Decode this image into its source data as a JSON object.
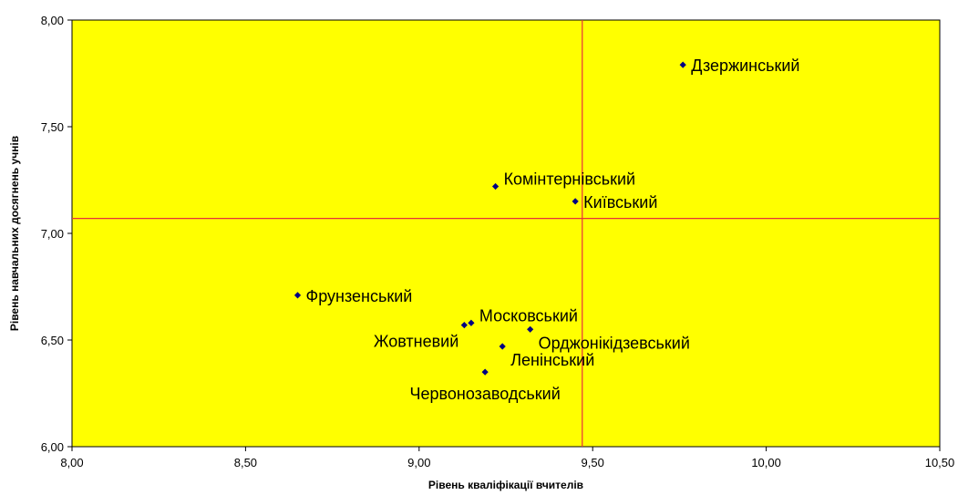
{
  "chart_data": {
    "type": "scatter",
    "title": "",
    "xlabel": "Рівень кваліфікації вчителів",
    "ylabel": "Рівень навчальних досягнень учнів",
    "xlim": [
      8.0,
      10.5
    ],
    "ylim": [
      6.0,
      8.0
    ],
    "x_ticks": [
      "8,00",
      "8,50",
      "9,00",
      "9,50",
      "10,00",
      "10,50"
    ],
    "x_tick_values": [
      8.0,
      8.5,
      9.0,
      9.5,
      10.0,
      10.5
    ],
    "y_ticks": [
      "6,00",
      "6,50",
      "7,00",
      "7,50",
      "8,00"
    ],
    "y_tick_values": [
      6.0,
      6.5,
      7.0,
      7.5,
      8.0
    ],
    "reference_lines": {
      "x": 9.47,
      "y": 7.07
    },
    "grid": false,
    "colors": {
      "plot_background": "#FFFF00",
      "marker": "#000080",
      "reference_line": "#E8303A"
    },
    "points": [
      {
        "label": "Дзержинський",
        "x": 9.76,
        "y": 7.79,
        "label_position": "right"
      },
      {
        "label": "Комінтернівський",
        "x": 9.22,
        "y": 7.22,
        "label_position": "upper-right"
      },
      {
        "label": "Київський",
        "x": 9.45,
        "y": 7.15,
        "label_position": "right"
      },
      {
        "label": "Фрунзенський",
        "x": 8.65,
        "y": 6.71,
        "label_position": "right"
      },
      {
        "label": "Московський",
        "x": 9.15,
        "y": 6.58,
        "label_position": "upper-right"
      },
      {
        "label": "Жовтневий",
        "x": 9.13,
        "y": 6.57,
        "label_position": "lower-left"
      },
      {
        "label": "Орджонікідзевський",
        "x": 9.32,
        "y": 6.55,
        "label_position": "lower-right"
      },
      {
        "label": "Ленінський",
        "x": 9.24,
        "y": 6.47,
        "label_position": "lower-right"
      },
      {
        "label": "Червонозаводський",
        "x": 9.19,
        "y": 6.35,
        "label_position": "below"
      }
    ]
  }
}
